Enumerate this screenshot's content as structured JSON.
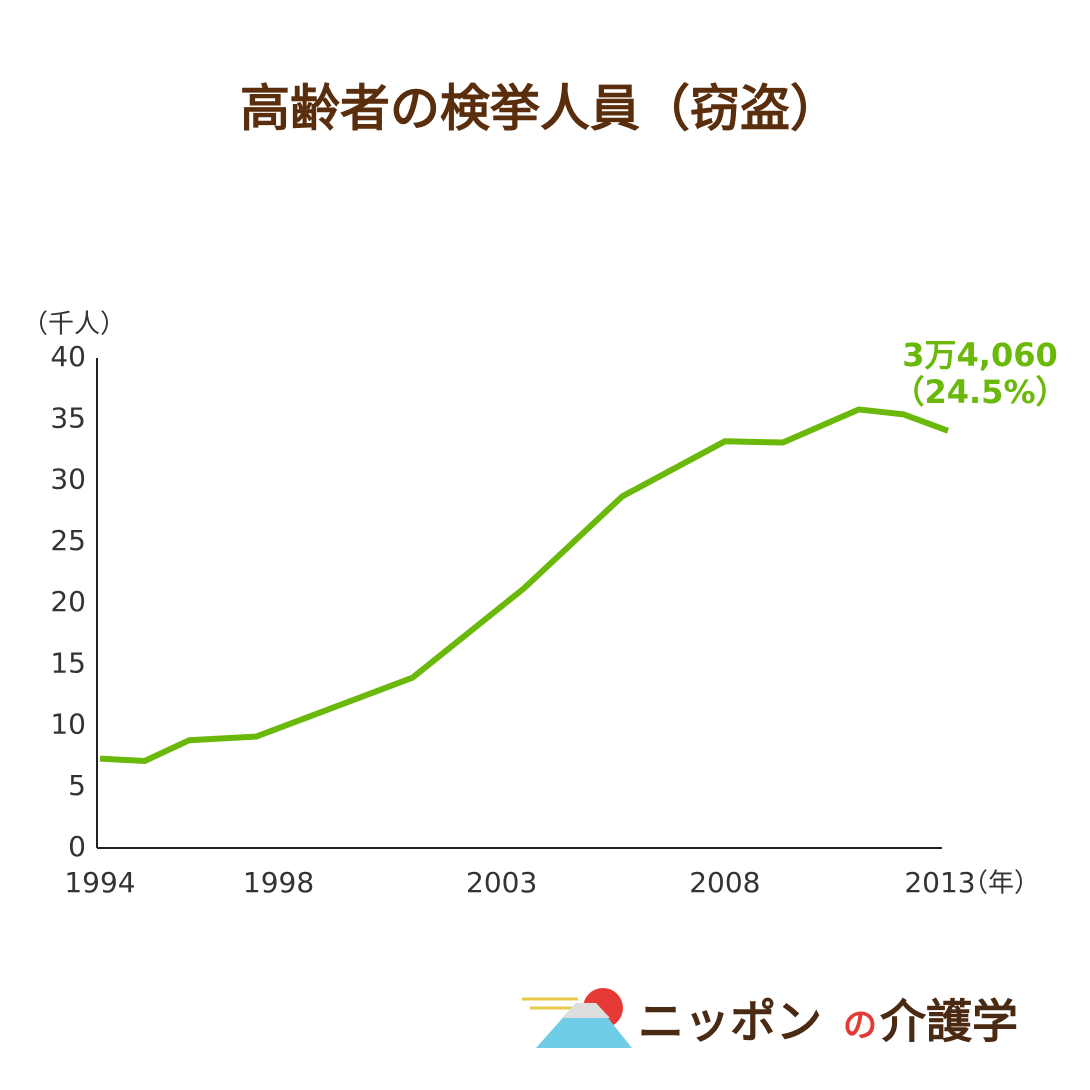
{
  "chart_data": {
    "type": "line",
    "title": "高齢者の検挙人員（窃盗）",
    "y_unit": "（千人）",
    "x_unit": "（年）",
    "x": [
      1994,
      1995,
      1996,
      1997.5,
      2001,
      2003.5,
      2005.7,
      2008,
      2009.3,
      2011,
      2012,
      2013
    ],
    "values": [
      7.3,
      7.1,
      8.8,
      9.1,
      13.9,
      21.2,
      28.7,
      33.2,
      33.1,
      35.8,
      35.4,
      34.06
    ],
    "color": "#6ab80a",
    "xlim": [
      1994,
      2013
    ],
    "xticks": [
      1994,
      1998,
      2003,
      2008,
      2013
    ],
    "ylim": [
      0,
      40
    ],
    "yticks": [
      0,
      5,
      10,
      15,
      20,
      25,
      30,
      35,
      40
    ],
    "annotations": [
      "3万4,060",
      "（24.5%）"
    ],
    "logo": [
      "ニッポン",
      "の",
      "介護学"
    ]
  }
}
